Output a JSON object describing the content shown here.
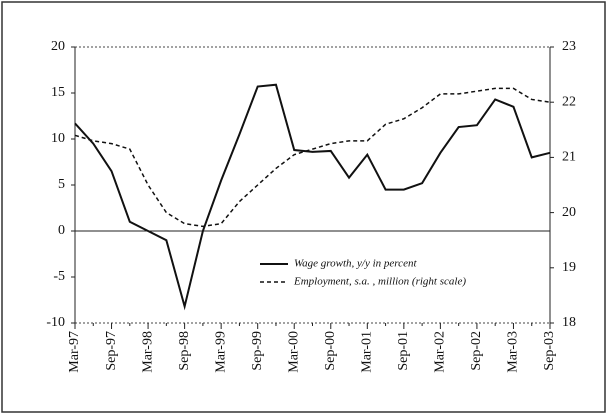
{
  "chart_data": {
    "type": "line",
    "categories": [
      "Mar-97",
      null,
      "Sep-97",
      null,
      "Mar-98",
      null,
      "Sep-98",
      null,
      "Mar-99",
      null,
      "Sep-99",
      null,
      "Mar-00",
      null,
      "Sep-00",
      null,
      "Mar-01",
      null,
      "Sep-01",
      null,
      "Mar-02",
      null,
      "Sep-02",
      null,
      "Mar-03",
      null,
      "Sep-03"
    ],
    "series": [
      {
        "name": "Wage growth, y/y in percent",
        "color": "#111111",
        "dash": "solid",
        "values": [
          11.7,
          9.5,
          6.5,
          1.0,
          0,
          -1.0,
          -8.2,
          0,
          5.5,
          10.5,
          15.7,
          15.9,
          8.8,
          8.6,
          8.7,
          5.8,
          8.3,
          4.5,
          4.5,
          5.2,
          8.5,
          11.3,
          11.5,
          14.3,
          13.5,
          8.0,
          8.5
        ]
      },
      {
        "name": "Employment, s.a. , million (right scale)",
        "color": "#111111",
        "dash": "dashed",
        "axis": "y2",
        "values": [
          21.4,
          21.3,
          21.25,
          21.15,
          20.5,
          20.0,
          19.8,
          19.75,
          19.8,
          20.2,
          20.5,
          20.8,
          21.05,
          21.15,
          21.25,
          21.3,
          21.3,
          21.6,
          21.7,
          21.9,
          22.15,
          22.15,
          22.2,
          22.25,
          22.25,
          22.05,
          22.0
        ]
      }
    ],
    "ylim": [
      -10,
      20
    ],
    "yticks": [
      -10,
      -5,
      0,
      5,
      10,
      15,
      20
    ],
    "y2lim": [
      18,
      23
    ],
    "y2ticks": [
      18,
      19,
      20,
      21,
      22,
      23
    ],
    "legend": "lower-right"
  }
}
